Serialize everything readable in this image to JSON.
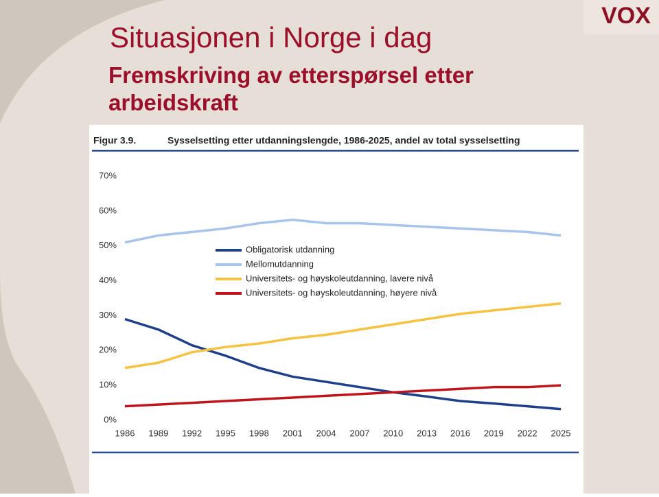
{
  "slide": {
    "title": "Situasjonen i Norge i dag",
    "subtitle": "Fremskriving av etterspørsel etter arbeidskraft",
    "logo": "VOX"
  },
  "chart_data": {
    "type": "line",
    "figure_label": "Figur 3.9.",
    "title": "Sysselsetting etter utdanningslengde, 1986-2025, andel av total sysselsetting",
    "x": [
      1986,
      1989,
      1992,
      1995,
      1998,
      2001,
      2004,
      2007,
      2010,
      2013,
      2016,
      2019,
      2022,
      2025
    ],
    "xlim": [
      1986,
      2025
    ],
    "xticks": [
      1986,
      1989,
      1992,
      1995,
      1998,
      2001,
      2004,
      2007,
      2010,
      2013,
      2016,
      2019,
      2022,
      2025
    ],
    "ylim": [
      0,
      70
    ],
    "yticks": [
      {
        "value": 0,
        "label": "0%"
      },
      {
        "value": 10,
        "label": "10%"
      },
      {
        "value": 20,
        "label": "20%"
      },
      {
        "value": 30,
        "label": "30%"
      },
      {
        "value": 40,
        "label": "40%"
      },
      {
        "value": 50,
        "label": "50%"
      },
      {
        "value": 60,
        "label": "60%"
      },
      {
        "value": 70,
        "label": "70%"
      }
    ],
    "series": [
      {
        "name": "Obligatorisk utdanning",
        "color": "#1f3f8a",
        "values": [
          29,
          26,
          21.5,
          18.5,
          15,
          12.5,
          11,
          9.5,
          8,
          6.8,
          5.5,
          4.8,
          4,
          3.2
        ]
      },
      {
        "name": "Mellomutdanning",
        "color": "#a9c4ec",
        "values": [
          51,
          53,
          54,
          55,
          56.5,
          57.5,
          56.5,
          56.5,
          56,
          55.5,
          55,
          54.5,
          54,
          53
        ]
      },
      {
        "name": "Universitets- og høyskoleutdanning, lavere nivå",
        "color": "#f5c242",
        "values": [
          15,
          16.5,
          19.5,
          21,
          22,
          23.5,
          24.5,
          26,
          27.5,
          29,
          30.5,
          31.5,
          32.5,
          33.5
        ]
      },
      {
        "name": "Universitets- og høyskoleutdanning, høyere nivå",
        "color": "#c0141c",
        "values": [
          4,
          4.5,
          5,
          5.5,
          6,
          6.5,
          7,
          7.5,
          8,
          8.5,
          9,
          9.5,
          9.5,
          10
        ]
      }
    ]
  }
}
